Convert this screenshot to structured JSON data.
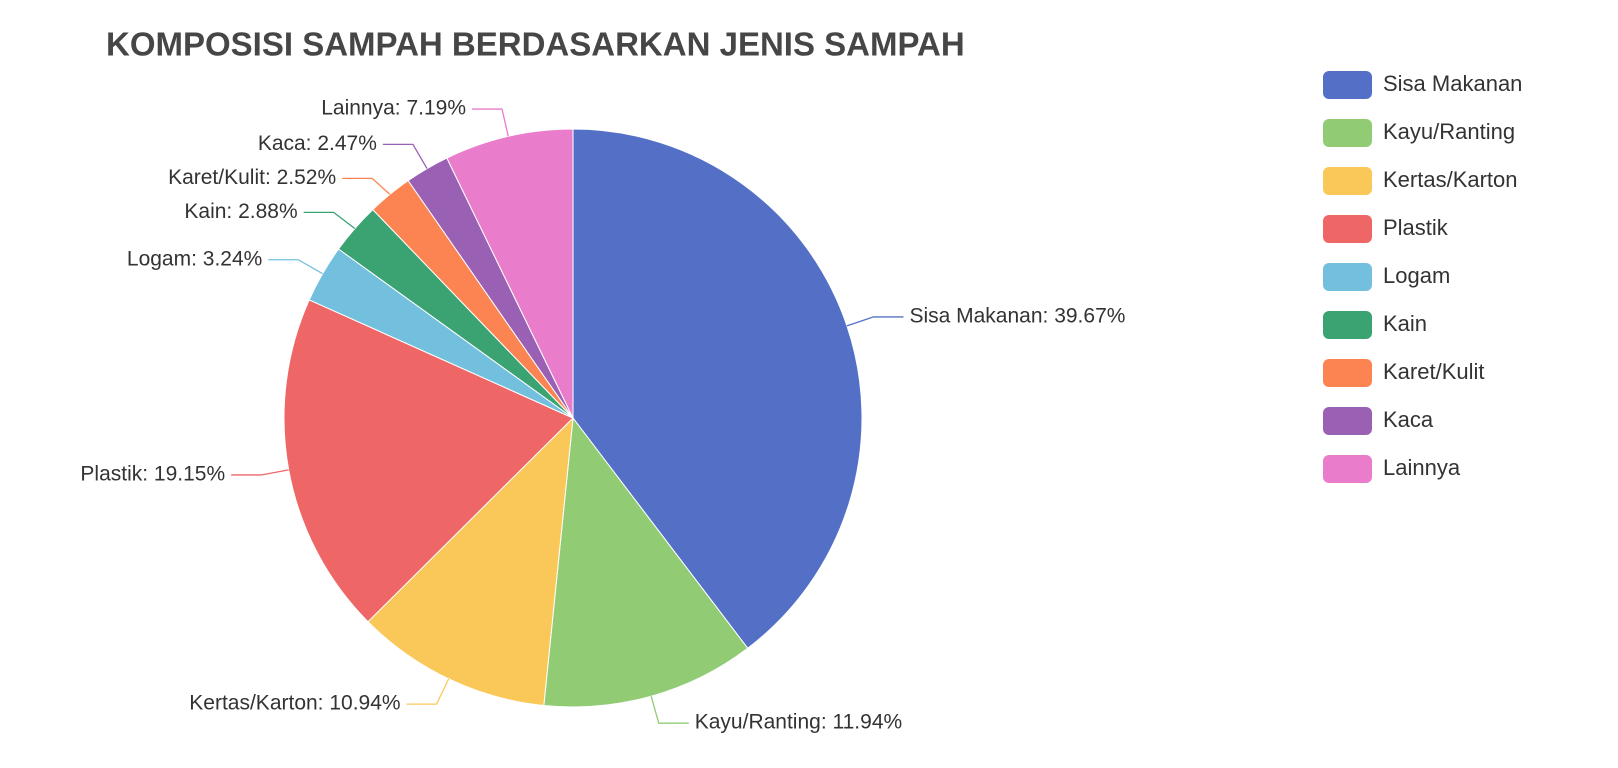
{
  "chart_data": {
    "type": "pie",
    "title": "KOMPOSISI SAMPAH BERDASARKAN JENIS SAMPAH",
    "categories": [
      "Sisa Makanan",
      "Kayu/Ranting",
      "Kertas/Karton",
      "Plastik",
      "Logam",
      "Kain",
      "Karet/Kulit",
      "Kaca",
      "Lainnya"
    ],
    "values": [
      39.67,
      11.94,
      10.94,
      19.15,
      3.24,
      2.88,
      2.52,
      2.47,
      7.19
    ],
    "value_labels": [
      "Sisa Makanan: 39.67%",
      "Kayu/Ranting: 11.94%",
      "Kertas/Karton: 10.94%",
      "Plastik: 19.15%",
      "Logam: 3.24%",
      "Kain: 2.88%",
      "Karet/Kulit: 2.52%",
      "Kaca: 2.47%",
      "Lainnya: 7.19%"
    ],
    "colors": [
      "#5470c6",
      "#91cc75",
      "#fac858",
      "#ee6666",
      "#73c0de",
      "#3ba272",
      "#fc8452",
      "#9a60b4",
      "#ea7ccc"
    ],
    "legend": "right"
  }
}
